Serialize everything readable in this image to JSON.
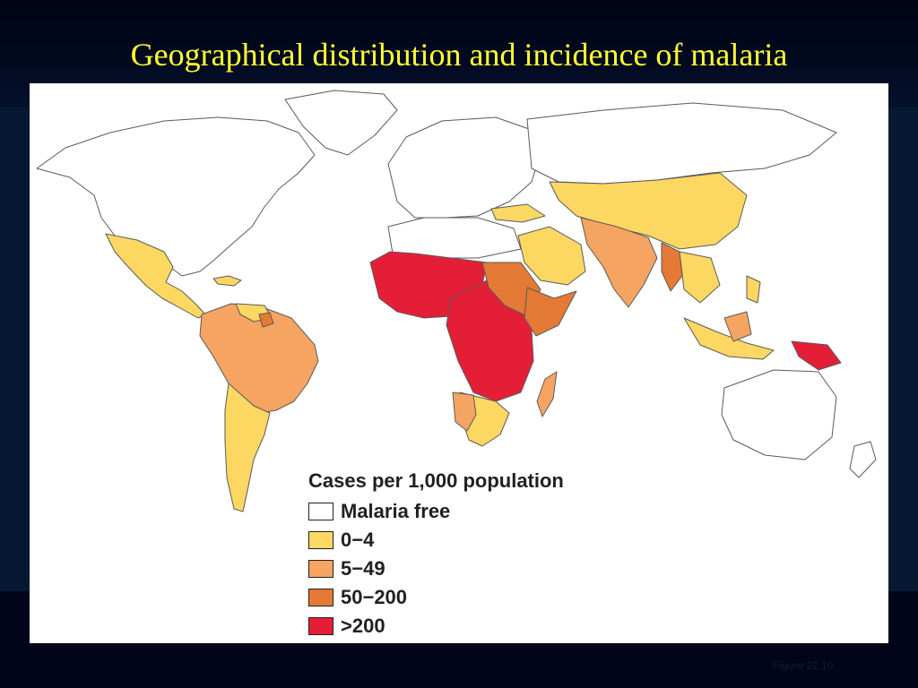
{
  "slide": {
    "title": "Geographical distribution and incidence of malaria",
    "credit": "Figure 22.10"
  },
  "colors": {
    "background": "#071833",
    "title": "#ffff33",
    "malaria_free": "#ffffff",
    "low": "#fcd863",
    "moderate": "#f5a461",
    "high": "#e47a35",
    "very_high": "#e51e38",
    "border": "#6b6b6b"
  },
  "legend": {
    "title": "Cases per 1,000 population",
    "items": [
      {
        "label": "Malaria free",
        "color": "#ffffff"
      },
      {
        "label": "0−4",
        "color": "#fcd863"
      },
      {
        "label": "5−49",
        "color": "#f5a461"
      },
      {
        "label": "50−200",
        "color": "#e47a35"
      },
      {
        "label": ">200",
        "color": "#e51e38"
      }
    ]
  }
}
